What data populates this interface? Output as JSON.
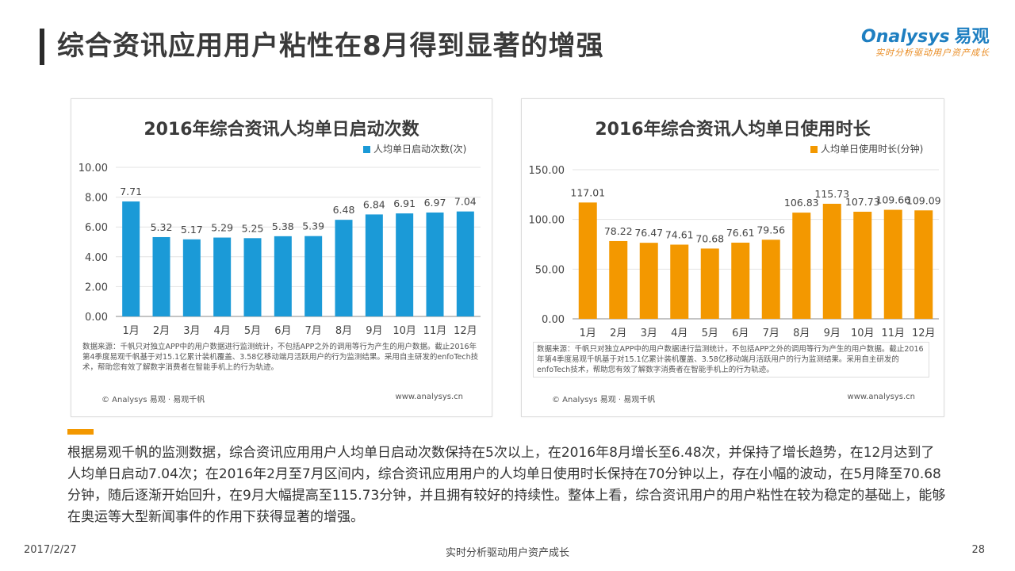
{
  "header": {
    "title": "综合资讯应用用户粘性在8月得到显著的增强",
    "logo_text": "nalysys",
    "logo_cn": "易观",
    "logo_tagline": "实时分析驱动用户资产成长"
  },
  "colors": {
    "left_bars": "#1b9ad7",
    "right_bars": "#f39800",
    "accent": "#f39800"
  },
  "chart_data": [
    {
      "type": "bar",
      "title": "2016年综合资讯人均单日启动次数",
      "categories": [
        "1月",
        "2月",
        "3月",
        "4月",
        "5月",
        "6月",
        "7月",
        "8月",
        "9月",
        "10月",
        "11月",
        "12月"
      ],
      "series": [
        {
          "name": "人均单日启动次数(次)",
          "values": [
            7.71,
            5.32,
            5.17,
            5.29,
            5.25,
            5.38,
            5.39,
            6.48,
            6.84,
            6.91,
            6.97,
            7.04
          ]
        }
      ],
      "ylim": [
        0,
        10
      ],
      "yticks": [
        "0.00",
        "2.00",
        "4.00",
        "6.00",
        "8.00",
        "10.00"
      ],
      "ytick_values": [
        0,
        2,
        4,
        6,
        8,
        10
      ],
      "value_labels": [
        "7.71",
        "5.32",
        "5.17",
        "5.29",
        "5.25",
        "5.38",
        "5.39",
        "6.48",
        "6.84",
        "6.91",
        "6.97",
        "7.04"
      ],
      "legend_position": "top-right"
    },
    {
      "type": "bar",
      "title": "2016年综合资讯人均单日使用时长",
      "categories": [
        "1月",
        "2月",
        "3月",
        "4月",
        "5月",
        "6月",
        "7月",
        "8月",
        "9月",
        "10月",
        "11月",
        "12月"
      ],
      "series": [
        {
          "name": "人均单日使用时长(分钟)",
          "values": [
            117.01,
            78.22,
            76.47,
            74.61,
            70.68,
            76.61,
            79.56,
            106.83,
            115.73,
            107.73,
            109.66,
            109.09
          ]
        }
      ],
      "ylim": [
        0,
        150
      ],
      "yticks": [
        "0.00",
        "50.00",
        "100.00",
        "150.00"
      ],
      "ytick_values": [
        0,
        50,
        100,
        150
      ],
      "value_labels": [
        "117.01",
        "78.22",
        "76.47",
        "74.61",
        "70.68",
        "76.61",
        "79.56",
        "106.83",
        "115.73",
        "107.73",
        "109.66",
        "109.09"
      ],
      "legend_position": "top-right"
    }
  ],
  "panels": {
    "left": {
      "source": "数据来源：千帆只对独立APP中的用户数据进行监测统计，不包括APP之外的调用等行为产生的用户数据。截止2016年第4季度易观千帆基于对15.1亿累计装机覆盖、3.58亿移动端月活跃用户的行为监测结果。采用自主研发的enfoTech技术，帮助您有效了解数字消费者在智能手机上的行为轨迹。",
      "copyright": "© Analysys 易观 · 易观千帆",
      "website": "www.analysys.cn"
    },
    "right": {
      "source": "数据来源：千帆只对独立APP中的用户数据进行监测统计，不包括APP之外的调用等行为产生的用户数据。截止2016年第4季度易观千帆基于对15.1亿累计装机覆盖、3.58亿移动端月活跃用户的行为监测结果。采用自主研发的enfoTech技术，帮助您有效了解数字消费者在智能手机上的行为轨迹。",
      "copyright": "© Analysys 易观 · 易观千帆",
      "website": "www.analysys.cn"
    }
  },
  "body_text": "根据易观千帆的监测数据，综合资讯应用用户人均单日启动次数保持在5次以上，在2016年8月增长至6.48次，并保持了增长趋势，在12月达到了人均单日启动7.04次；在2016年2月至7月区间内，综合资讯应用用户的人均单日使用时长保持在70分钟以上，存在小幅的波动，在5月降至70.68分钟，随后逐渐开始回升，在9月大幅提高至115.73分钟，并且拥有较好的持续性。整体上看，综合资讯用户的用户粘性在较为稳定的基础上，能够在奥运等大型新闻事件的作用下获得显著的增强。",
  "footer": {
    "date": "2017/2/27",
    "center": "实时分析驱动用户资产成长",
    "page": "28"
  }
}
